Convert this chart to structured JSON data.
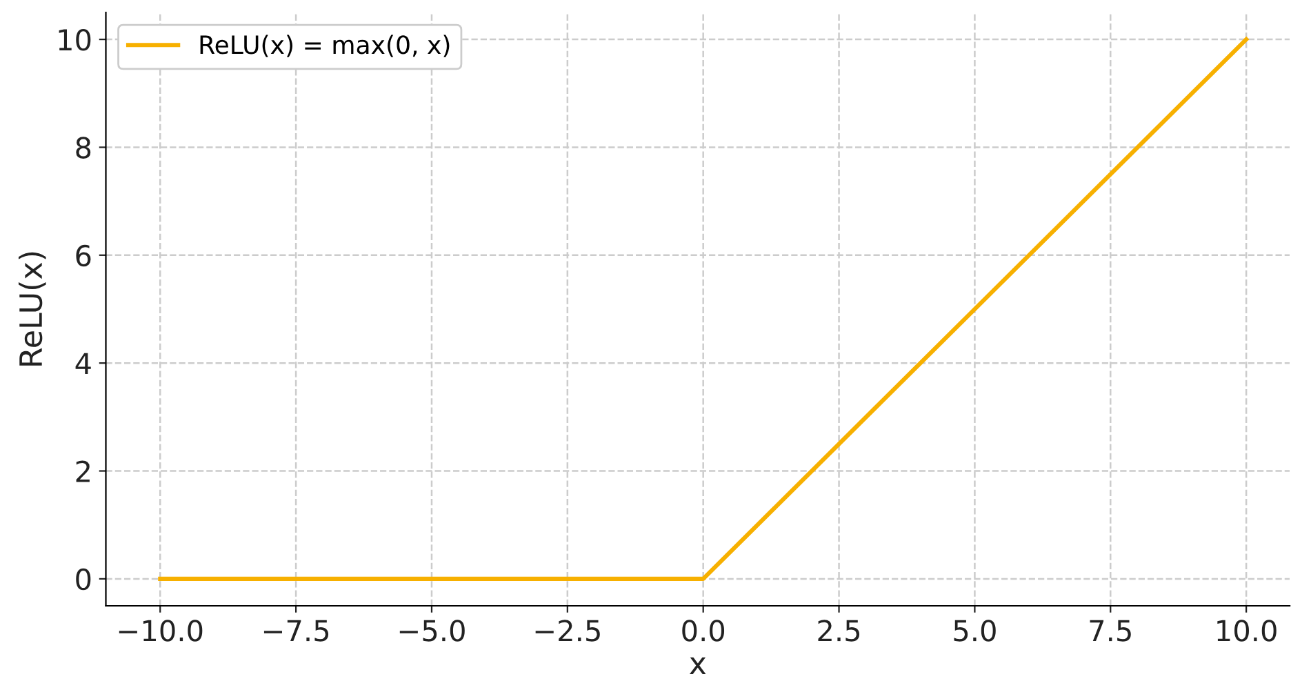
{
  "chart_data": {
    "type": "line",
    "xlabel": "x",
    "ylabel": "ReLU(x)",
    "x": [
      -10,
      0,
      10
    ],
    "series": [
      {
        "name": "ReLU(x) = max(0, x)",
        "color": "#f7b000",
        "values": [
          0,
          0,
          10
        ]
      }
    ],
    "xlim": [
      -11,
      10.8
    ],
    "xticks": [
      {
        "value": -10,
        "label": "−10.0"
      },
      {
        "value": -7.5,
        "label": "−7.5"
      },
      {
        "value": -5,
        "label": "−5.0"
      },
      {
        "value": -2.5,
        "label": "−2.5"
      },
      {
        "value": 0,
        "label": "0.0"
      },
      {
        "value": 2.5,
        "label": "2.5"
      },
      {
        "value": 5,
        "label": "5.0"
      },
      {
        "value": 7.5,
        "label": "7.5"
      },
      {
        "value": 10,
        "label": "10.0"
      }
    ],
    "ylim": [
      -0.5,
      10.5
    ],
    "yticks": [
      0,
      2,
      4,
      6,
      8,
      10
    ],
    "grid": true,
    "legend": "top left",
    "line_style": "solid",
    "marker": "none"
  }
}
